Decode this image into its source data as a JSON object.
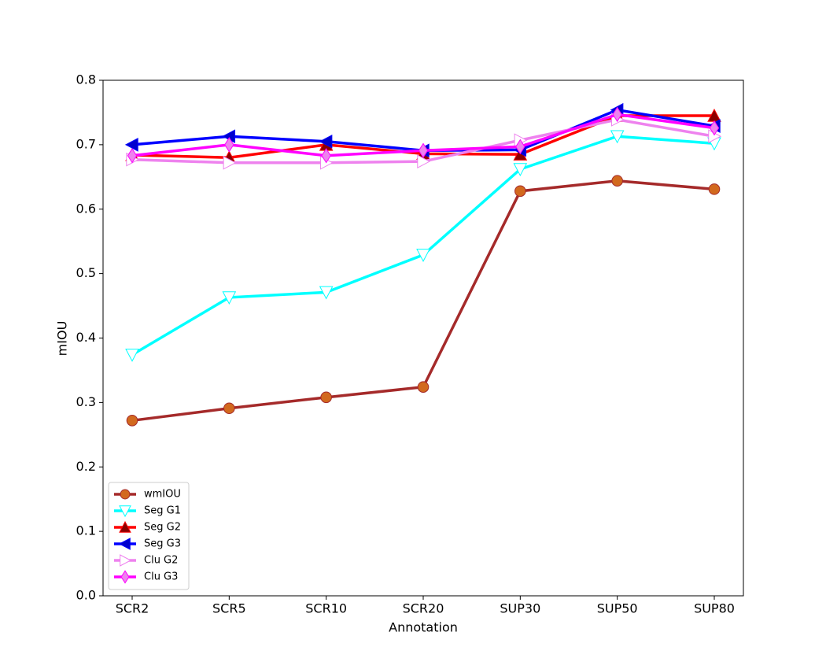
{
  "chart_data": {
    "type": "line",
    "x_label": "Annotation",
    "y_label": "mIOU",
    "categories": [
      "SCR2",
      "SCR5",
      "SCR10",
      "SCR20",
      "SUP30",
      "SUP50",
      "SUP80"
    ],
    "series": [
      {
        "name": "wmIOU",
        "color": "#a52a2a",
        "marker": "circle",
        "marker_fill": "#d2691e",
        "values": [
          0.272,
          0.291,
          0.308,
          0.324,
          0.628,
          0.644,
          0.631
        ]
      },
      {
        "name": "Seg G1",
        "color": "#00ffff",
        "marker": "triangle-down",
        "marker_fill": "#ffffff",
        "values": [
          0.374,
          0.463,
          0.471,
          0.529,
          0.662,
          0.713,
          0.702
        ]
      },
      {
        "name": "Seg G2",
        "color": "#ff0000",
        "marker": "triangle-up",
        "marker_fill": "#8b0000",
        "values": [
          0.684,
          0.68,
          0.7,
          0.686,
          0.685,
          0.745,
          0.745
        ]
      },
      {
        "name": "Seg G3",
        "color": "#0000ff",
        "marker": "triangle-left",
        "marker_fill": "#0000cd",
        "values": [
          0.7,
          0.713,
          0.705,
          0.691,
          0.692,
          0.754,
          0.729
        ]
      },
      {
        "name": "Clu G2",
        "color": "#ee82ee",
        "marker": "triangle-right",
        "marker_fill": "#ffffff",
        "values": [
          0.677,
          0.672,
          0.672,
          0.674,
          0.707,
          0.739,
          0.713
        ]
      },
      {
        "name": "Clu G3",
        "color": "#ff00ff",
        "marker": "diamond",
        "marker_fill": "#ee82ee",
        "values": [
          0.683,
          0.7,
          0.683,
          0.691,
          0.697,
          0.747,
          0.726
        ]
      }
    ],
    "ylim": [
      0,
      0.8
    ],
    "yticks": [
      {
        "value": 0,
        "label": "0.0"
      },
      0.1,
      0.2,
      0.3,
      0.4,
      0.5,
      0.6,
      0.7,
      0.8
    ],
    "legend": "lower left",
    "grid": false
  }
}
